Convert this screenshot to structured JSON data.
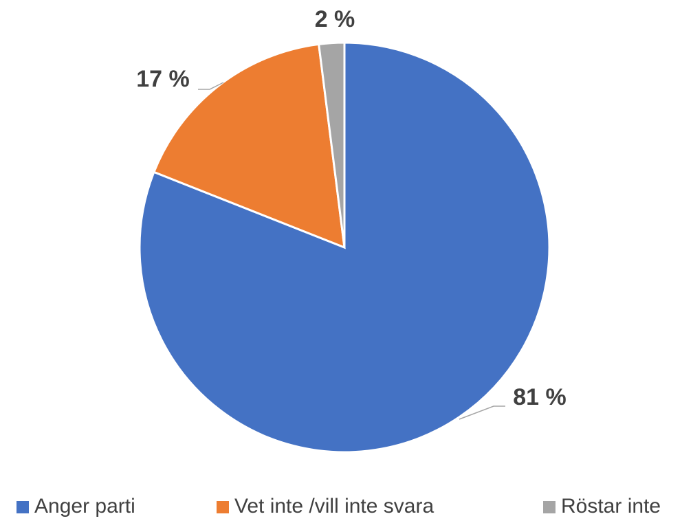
{
  "chart_data": {
    "type": "pie",
    "categories": [
      "Anger parti",
      "Vet inte /vill inte svara",
      "Röstar inte"
    ],
    "values": [
      81,
      17,
      2
    ],
    "value_labels": [
      "81 %",
      "17 %",
      "2 %"
    ],
    "colors": [
      "#4472c4",
      "#ed7d31",
      "#a5a5a5"
    ],
    "legend": "bottom"
  }
}
